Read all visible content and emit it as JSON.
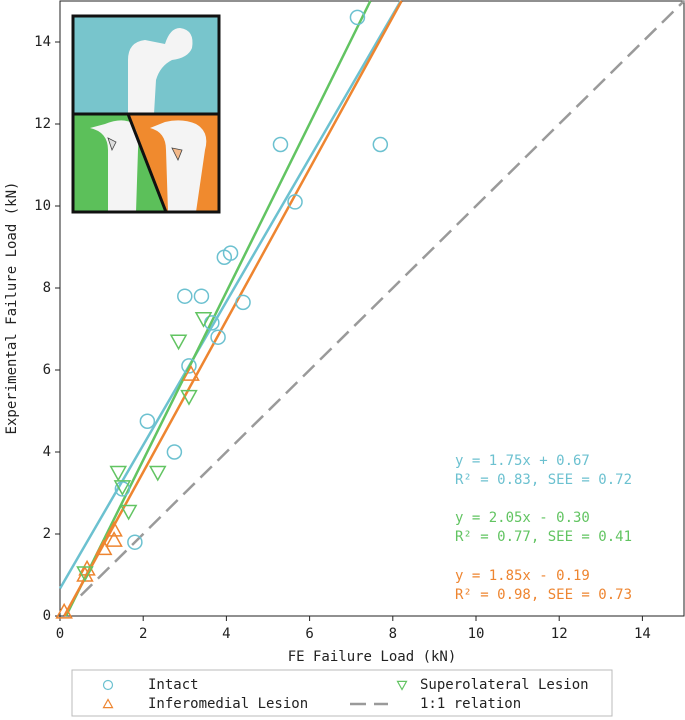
{
  "chart_data": {
    "type": "scatter",
    "xlabel": "FE Failure Load (kN)",
    "ylabel": "Experimental Failure Load (kN)",
    "xlim": [
      0,
      15
    ],
    "ylim": [
      0,
      15
    ],
    "xticks": [
      0,
      2,
      4,
      6,
      8,
      10,
      12,
      14
    ],
    "yticks": [
      0,
      2,
      4,
      6,
      8,
      10,
      12,
      14
    ],
    "grid": false,
    "legend": "bottom",
    "series": [
      {
        "name": "Intact",
        "color": "#6cc1d0",
        "marker": "circle",
        "x": [
          7.15,
          5.3,
          7.7,
          5.65,
          3.95,
          4.1,
          3.0,
          3.4,
          4.4,
          3.65,
          3.8,
          3.1,
          2.1,
          2.75,
          1.5,
          1.8
        ],
        "values": [
          14.6,
          11.5,
          11.5,
          10.1,
          8.75,
          8.85,
          7.8,
          7.8,
          7.65,
          7.15,
          6.8,
          6.1,
          4.75,
          4.0,
          3.1,
          1.8
        ]
      },
      {
        "name": "Inferomedial Lesion",
        "color": "#ee8530",
        "marker": "triangle-up",
        "x": [
          3.15,
          1.3,
          1.3,
          1.05,
          0.6,
          0.65,
          0.1
        ],
        "values": [
          5.9,
          2.1,
          1.85,
          1.65,
          1.0,
          1.15,
          0.1
        ]
      },
      {
        "name": "Superolateral Lesion",
        "color": "#62c462",
        "marker": "triangle-down",
        "x": [
          3.45,
          2.85,
          3.1,
          1.4,
          2.35,
          1.65,
          0.6,
          1.5
        ],
        "values": [
          7.25,
          6.7,
          5.35,
          3.5,
          3.5,
          2.55,
          1.05,
          3.15
        ]
      },
      {
        "name": "1:1 relation",
        "color": "#9a9a9a",
        "marker": "dashed-line",
        "x": [
          0.5,
          15
        ],
        "values": [
          0.5,
          15
        ]
      },
      {
        "color": "#6cc1d0",
        "marker": "line",
        "x": [
          0,
          8.19
        ],
        "values": [
          0.67,
          15
        ]
      },
      {
        "color": "#62c462",
        "marker": "line",
        "x": [
          0.146,
          7.46
        ],
        "values": [
          0,
          15
        ]
      },
      {
        "color": "#ee8530",
        "marker": "line",
        "x": [
          0.103,
          8.21
        ],
        "values": [
          0,
          15
        ]
      }
    ],
    "annotations": [
      {
        "text": "y = 1.75x + 0.67",
        "color": "#6cc1d0"
      },
      {
        "text": "R² = 0.83,  SEE = 0.72",
        "color": "#6cc1d0"
      },
      {
        "text": "y = 2.05x - 0.30",
        "color": "#62c462"
      },
      {
        "text": "R² = 0.77,  SEE = 0.41",
        "color": "#62c462"
      },
      {
        "text": "y = 1.85x - 0.19",
        "color": "#ee8530"
      },
      {
        "text": "R² = 0.98,  SEE = 0.73",
        "color": "#ee8530"
      }
    ]
  }
}
